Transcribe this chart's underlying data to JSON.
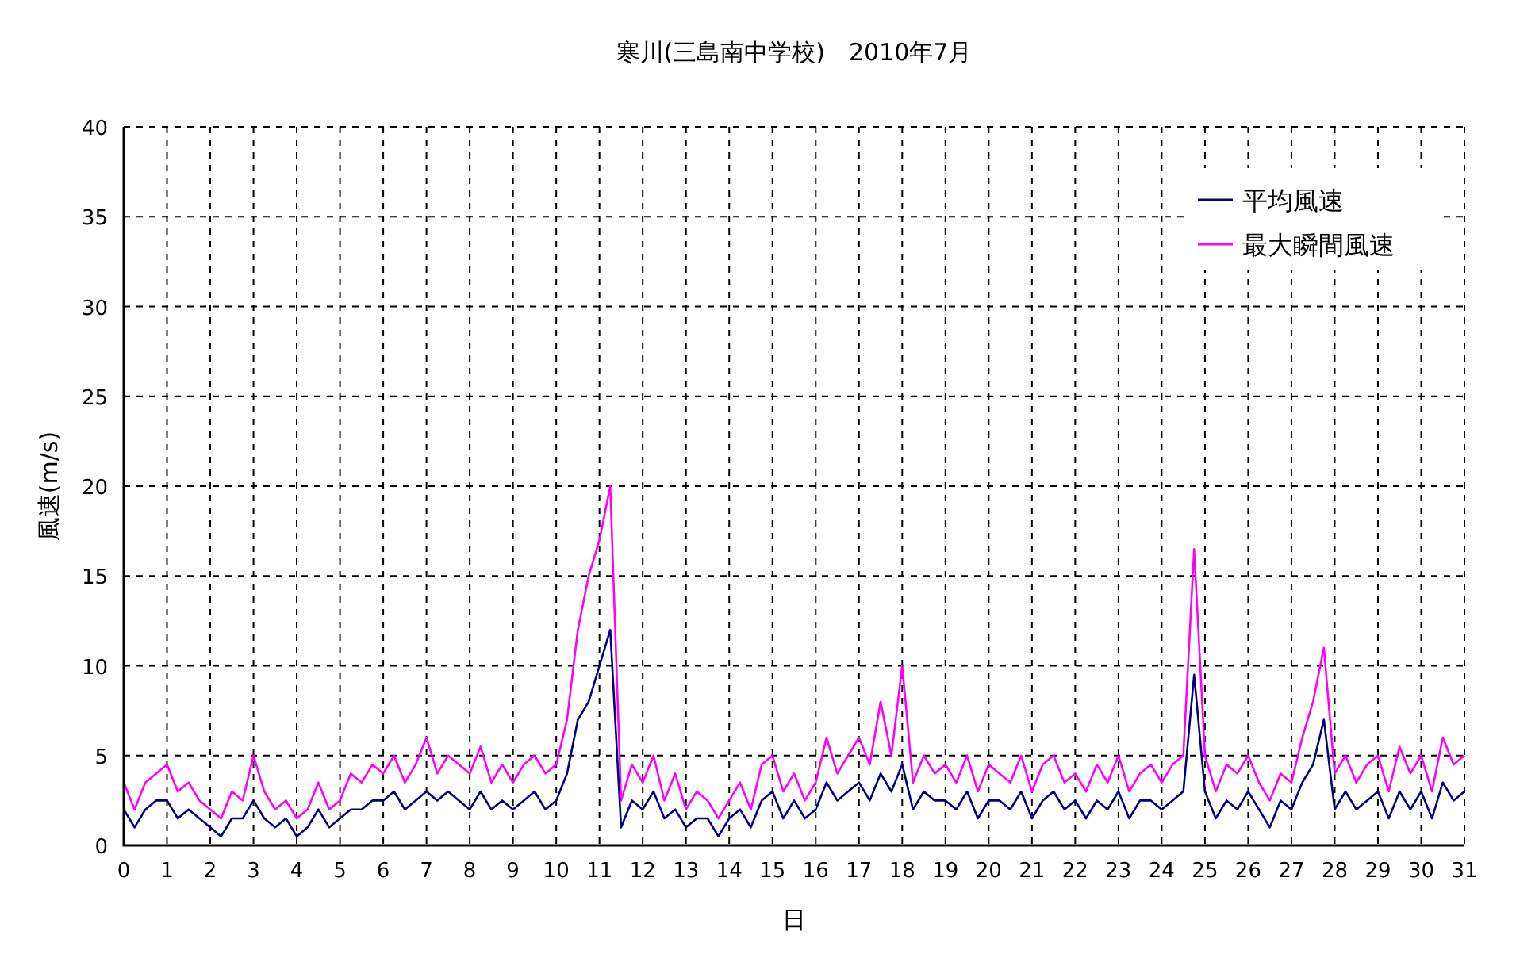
{
  "chart_data": {
    "type": "line",
    "title": "寒川(三島南中学校)　2010年7月",
    "xlabel": "日",
    "ylabel": "風速(m/s)",
    "x": [
      0,
      0.25,
      0.5,
      0.75,
      1,
      1.25,
      1.5,
      1.75,
      2,
      2.25,
      2.5,
      2.75,
      3,
      3.25,
      3.5,
      3.75,
      4,
      4.25,
      4.5,
      4.75,
      5,
      5.25,
      5.5,
      5.75,
      6,
      6.25,
      6.5,
      6.75,
      7,
      7.25,
      7.5,
      7.75,
      8,
      8.25,
      8.5,
      8.75,
      9,
      9.25,
      9.5,
      9.75,
      10,
      10.25,
      10.5,
      10.75,
      11,
      11.25,
      11.5,
      11.75,
      12,
      12.25,
      12.5,
      12.75,
      13,
      13.25,
      13.5,
      13.75,
      14,
      14.25,
      14.5,
      14.75,
      15,
      15.25,
      15.5,
      15.75,
      16,
      16.25,
      16.5,
      16.75,
      17,
      17.25,
      17.5,
      17.75,
      18,
      18.25,
      18.5,
      18.75,
      19,
      19.25,
      19.5,
      19.75,
      20,
      20.25,
      20.5,
      20.75,
      21,
      21.25,
      21.5,
      21.75,
      22,
      22.25,
      22.5,
      22.75,
      23,
      23.25,
      23.5,
      23.75,
      24,
      24.25,
      24.5,
      24.75,
      25,
      25.25,
      25.5,
      25.75,
      26,
      26.25,
      26.5,
      26.75,
      27,
      27.25,
      27.5,
      27.75,
      28,
      28.25,
      28.5,
      28.75,
      29,
      29.25,
      29.5,
      29.75,
      30,
      30.25,
      30.5,
      30.75,
      31
    ],
    "series": [
      {
        "name": "平均風速",
        "color": "#000080",
        "values": [
          2,
          1,
          2,
          2.5,
          2.5,
          1.5,
          2,
          1.5,
          1,
          0.5,
          1.5,
          1.5,
          2.5,
          1.5,
          1,
          1.5,
          0.5,
          1,
          2,
          1,
          1.5,
          2,
          2,
          2.5,
          2.5,
          3,
          2,
          2.5,
          3,
          2.5,
          3,
          2.5,
          2,
          3,
          2,
          2.5,
          2,
          2.5,
          3,
          2,
          2.5,
          4,
          7,
          8,
          10,
          12,
          1,
          2.5,
          2,
          3,
          1.5,
          2,
          1,
          1.5,
          1.5,
          0.5,
          1.5,
          2,
          1,
          2.5,
          3,
          1.5,
          2.5,
          1.5,
          2,
          3.5,
          2.5,
          3,
          3.5,
          2.5,
          4,
          3,
          4.5,
          2,
          3,
          2.5,
          2.5,
          2,
          3,
          1.5,
          2.5,
          2.5,
          2,
          3,
          1.5,
          2.5,
          3,
          2,
          2.5,
          1.5,
          2.5,
          2,
          3,
          1.5,
          2.5,
          2.5,
          2,
          2.5,
          3,
          9.5,
          3,
          1.5,
          2.5,
          2,
          3,
          2,
          1,
          2.5,
          2,
          3.5,
          4.5,
          7,
          2,
          3,
          2,
          2.5,
          3,
          1.5,
          3,
          2,
          3,
          1.5,
          3.5,
          2.5,
          3
        ]
      },
      {
        "name": "最大瞬間風速",
        "color": "#ff00ff",
        "values": [
          3.5,
          2,
          3.5,
          4,
          4.5,
          3,
          3.5,
          2.5,
          2,
          1.5,
          3,
          2.5,
          5,
          3,
          2,
          2.5,
          1.5,
          2,
          3.5,
          2,
          2.5,
          4,
          3.5,
          4.5,
          4,
          5,
          3.5,
          4.5,
          6,
          4,
          5,
          4.5,
          4,
          5.5,
          3.5,
          4.5,
          3.5,
          4.5,
          5,
          4,
          4.5,
          7,
          12,
          15,
          17,
          20,
          2.5,
          4.5,
          3.5,
          5,
          2.5,
          4,
          2,
          3,
          2.5,
          1.5,
          2.5,
          3.5,
          2,
          4.5,
          5,
          3,
          4,
          2.5,
          3.5,
          6,
          4,
          5,
          6,
          4.5,
          8,
          5,
          10,
          3.5,
          5,
          4,
          4.5,
          3.5,
          5,
          3,
          4.5,
          4,
          3.5,
          5,
          3,
          4.5,
          5,
          3.5,
          4,
          3,
          4.5,
          3.5,
          5,
          3,
          4,
          4.5,
          3.5,
          4.5,
          5,
          16.5,
          5,
          3,
          4.5,
          4,
          5,
          3.5,
          2.5,
          4,
          3.5,
          6,
          8,
          11,
          4,
          5,
          3.5,
          4.5,
          5,
          3,
          5.5,
          4,
          5,
          3,
          6,
          4.5,
          5
        ]
      }
    ],
    "xlim": [
      0,
      31
    ],
    "xticks": [
      0,
      1,
      2,
      3,
      4,
      5,
      6,
      7,
      8,
      9,
      10,
      11,
      12,
      13,
      14,
      15,
      16,
      17,
      18,
      19,
      20,
      21,
      22,
      23,
      24,
      25,
      26,
      27,
      28,
      29,
      30,
      31
    ],
    "ylim": [
      0,
      40
    ],
    "yticks": [
      0,
      5,
      10,
      15,
      20,
      25,
      30,
      35,
      40
    ],
    "grid": true,
    "legend": "top right",
    "line_style": "solid",
    "marker": "none"
  }
}
